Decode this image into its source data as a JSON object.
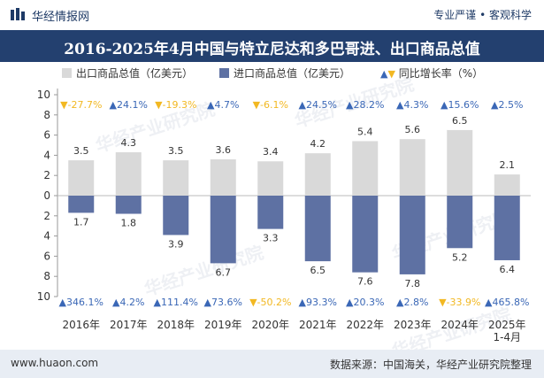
{
  "header": {
    "brand": "华经情报网",
    "slogan": "专业严谨 • 客观科学"
  },
  "title": "2016-2025年4月中国与特立尼达和多巴哥进、出口商品总值",
  "legend": {
    "export": "出口商品总值（亿美元）",
    "import": "进口商品总值（亿美元）",
    "yoy": "同比增长率（%）"
  },
  "watermark": "华经产业研究院",
  "footer": {
    "website": "www.huaon.com",
    "source": "数据来源：中国海关，华经产业研究院整理"
  },
  "colors": {
    "export": "#d9d9d9",
    "import": "#5e71a3",
    "up": "#3a67b6",
    "down": "#f2b822",
    "title_bg": "#23406f"
  },
  "chart_data": {
    "type": "bar",
    "categories": [
      "2016年",
      "2017年",
      "2018年",
      "2019年",
      "2020年",
      "2021年",
      "2022年",
      "2023年",
      "2024年",
      "2025年\n1-4月"
    ],
    "series": [
      {
        "name": "出口商品总值（亿美元）",
        "values": [
          3.5,
          4.3,
          3.5,
          3.6,
          3.4,
          4.2,
          5.4,
          5.6,
          6.5,
          2.1
        ]
      },
      {
        "name": "进口商品总值（亿美元）",
        "values": [
          1.7,
          1.8,
          3.9,
          6.7,
          3.3,
          6.5,
          7.6,
          7.8,
          5.2,
          6.4
        ]
      }
    ],
    "export_yoy": [
      "-27.7%",
      "24.1%",
      "-19.3%",
      "4.7%",
      "-6.1%",
      "24.5%",
      "28.2%",
      "4.3%",
      "15.6%",
      "2.5%"
    ],
    "import_yoy": [
      "346.1%",
      "4.2%",
      "111.4%",
      "73.6%",
      "-50.2%",
      "93.3%",
      "20.3%",
      "2.8%",
      "-33.9%",
      "465.8%"
    ],
    "y_ticks": [
      "10",
      "8",
      "6",
      "4",
      "2",
      "0",
      "2",
      "4",
      "6",
      "8",
      "10"
    ],
    "ylim": [
      -10,
      10
    ],
    "title": "2016-2025年4月中国与特立尼达和多巴哥进、出口商品总值"
  }
}
